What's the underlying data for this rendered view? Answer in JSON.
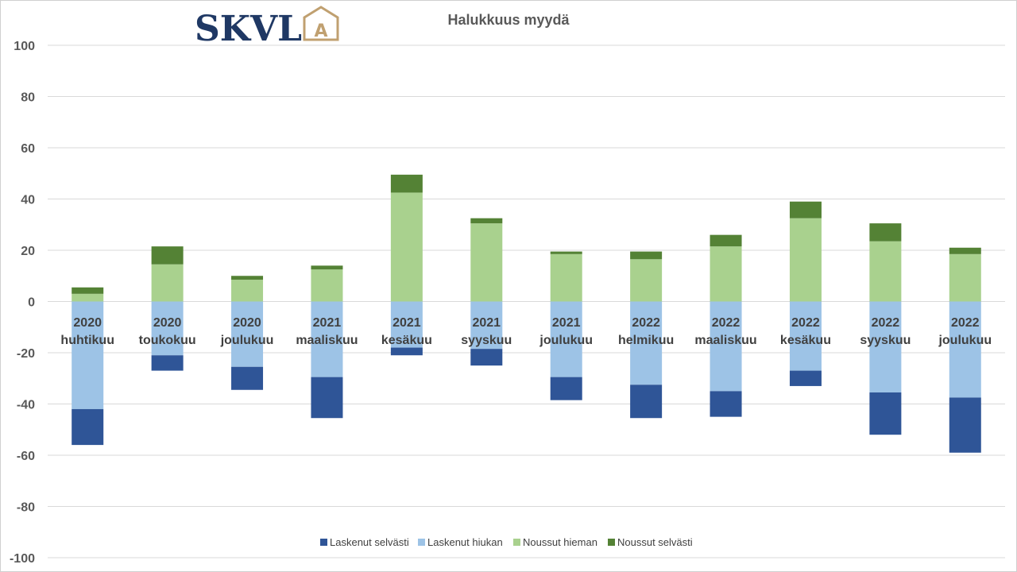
{
  "logo": {
    "text": "SKVL",
    "mark": "A",
    "text_color": "#1f3864",
    "mark_color": "#c0a070"
  },
  "chart_data": {
    "type": "bar",
    "stacked": true,
    "title": "Halukkuus myydä",
    "categories": [
      [
        "2020",
        "huhtikuu"
      ],
      [
        "2020",
        "toukokuu"
      ],
      [
        "2020",
        "joulukuu"
      ],
      [
        "2021",
        "maaliskuu"
      ],
      [
        "2021",
        "kesäkuu"
      ],
      [
        "2021",
        "syyskuu"
      ],
      [
        "2021",
        "joulukuu"
      ],
      [
        "2022",
        "helmikuu"
      ],
      [
        "2022",
        "maaliskuu"
      ],
      [
        "2022",
        "kesäkuu"
      ],
      [
        "2022",
        "syyskuu"
      ],
      [
        "2022",
        "joulukuu"
      ]
    ],
    "series": [
      {
        "name": "Laskenut selvästi",
        "color": "#2f5597",
        "values": [
          -14,
          -6,
          -9,
          -16,
          -3,
          -6.5,
          -9,
          -13,
          -10,
          -6,
          -16.5,
          -21.5
        ]
      },
      {
        "name": "Laskenut hiukan",
        "color": "#9dc3e6",
        "values": [
          -42,
          -21,
          -25.5,
          -29.5,
          -18,
          -18.5,
          -29.5,
          -32.5,
          -35,
          -27,
          -35.5,
          -37.5
        ]
      },
      {
        "name": "Noussut hieman",
        "color": "#a9d18e",
        "values": [
          3,
          14.5,
          8.5,
          12.5,
          42.5,
          30.5,
          18.5,
          16.5,
          21.5,
          32.5,
          23.5,
          18.5
        ]
      },
      {
        "name": "Noussut selvästi",
        "color": "#548235",
        "values": [
          2.5,
          7,
          1.5,
          1.5,
          7,
          2,
          1,
          3,
          4.5,
          6.5,
          7,
          2.5
        ]
      }
    ],
    "yticks": [
      100,
      80,
      60,
      40,
      20,
      0,
      -20,
      -40,
      -60,
      -80,
      -100
    ],
    "ylim": [
      -100,
      100
    ],
    "grid": true,
    "legend_position": "bottom"
  }
}
